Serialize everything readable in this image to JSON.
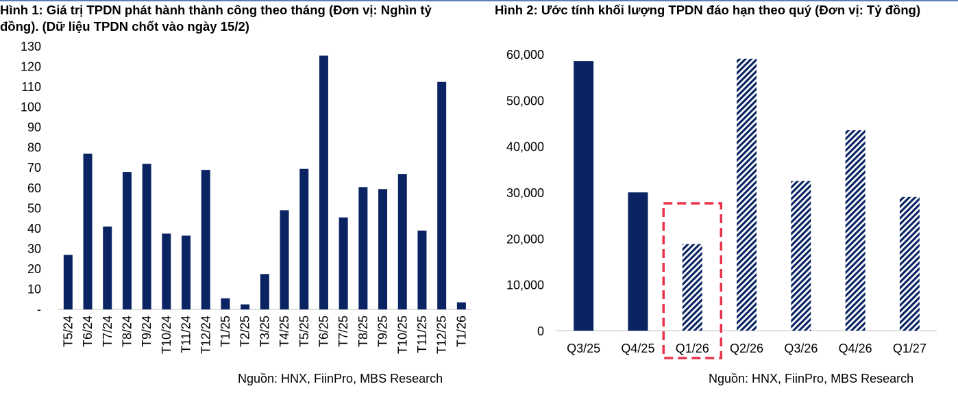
{
  "colors": {
    "navy": "#0a2463",
    "highlight": "#e8334a",
    "hatch_bg": "#ffffff"
  },
  "chart_data": [
    {
      "type": "bar",
      "title": "Hình 1: Giá trị TPDN phát hành thành công theo tháng (Đơn vị: Nghìn tỷ đồng). (Dữ liệu TPDN chốt vào ngày 15/2)",
      "categories": [
        "T5/24",
        "T6/24",
        "T7/24",
        "T8/24",
        "T9/24",
        "T10/24",
        "T11/24",
        "T12/24",
        "T1/25",
        "T2/25",
        "T3/25",
        "T4/25",
        "T5/25",
        "T6/25",
        "T7/25",
        "T8/25",
        "T9/25",
        "T10/25",
        "T11/25",
        "T12/25",
        "T1/26"
      ],
      "values": [
        27,
        77,
        41,
        68,
        72,
        37.5,
        36.5,
        69,
        5.5,
        2.5,
        17.5,
        49,
        69.5,
        125.5,
        45.5,
        60.5,
        59.5,
        67,
        39,
        112.5,
        3.5
      ],
      "ylim": [
        0,
        130
      ],
      "yticks": [
        0,
        10,
        20,
        30,
        40,
        50,
        60,
        70,
        80,
        90,
        100,
        110,
        120,
        130
      ],
      "ytick_labels": [
        "-",
        "10",
        "20",
        "30",
        "40",
        "50",
        "60",
        "70",
        "80",
        "90",
        "100",
        "110",
        "120",
        "130"
      ],
      "xlabel": "",
      "ylabel": "",
      "source": "Nguồn: HNX, FiinPro, MBS Research"
    },
    {
      "type": "bar",
      "title": "Hình 2: Ước tính khối lượng TPDN đáo hạn theo quý (Đơn vị: Tỷ đồng)",
      "categories": [
        "Q3/25",
        "Q4/25",
        "Q1/26",
        "Q2/26",
        "Q3/26",
        "Q4/26",
        "Q1/27"
      ],
      "values": [
        58500,
        30000,
        18800,
        59000,
        32500,
        43500,
        29000
      ],
      "styles": [
        "solid",
        "solid",
        "hatched",
        "hatched",
        "hatched",
        "hatched",
        "hatched"
      ],
      "highlight": "Q1/26",
      "ylim": [
        0,
        60000
      ],
      "yticks": [
        0,
        10000,
        20000,
        30000,
        40000,
        50000,
        60000
      ],
      "ytick_labels": [
        "0",
        "10,000",
        "20,000",
        "30,000",
        "40,000",
        "50,000",
        "60,000"
      ],
      "xlabel": "",
      "ylabel": "",
      "source": "Nguồn: HNX, FiinPro, MBS Research"
    }
  ]
}
